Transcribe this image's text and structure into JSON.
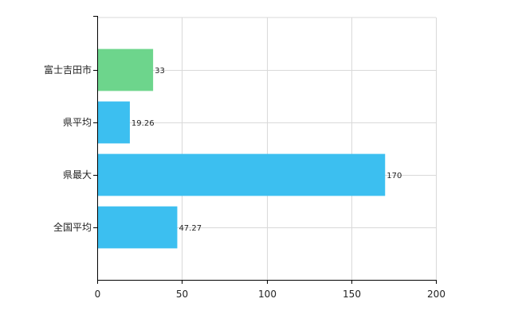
{
  "chart_data": {
    "type": "bar",
    "orientation": "horizontal",
    "categories": [
      "富士吉田市",
      "県平均",
      "県最大",
      "全国平均"
    ],
    "values": [
      33,
      19.26,
      170,
      47.27
    ],
    "value_labels": [
      "33",
      "19.26",
      "170",
      "47.27"
    ],
    "bar_colors": [
      "#6dd58c",
      "#3cbff0",
      "#3cbff0",
      "#3cbff0"
    ],
    "xlim": [
      0,
      200
    ],
    "xticks": [
      0,
      50,
      100,
      150,
      200
    ],
    "xtick_labels": [
      "0",
      "50",
      "100",
      "150",
      "200"
    ],
    "grid": true,
    "legend": "none"
  }
}
